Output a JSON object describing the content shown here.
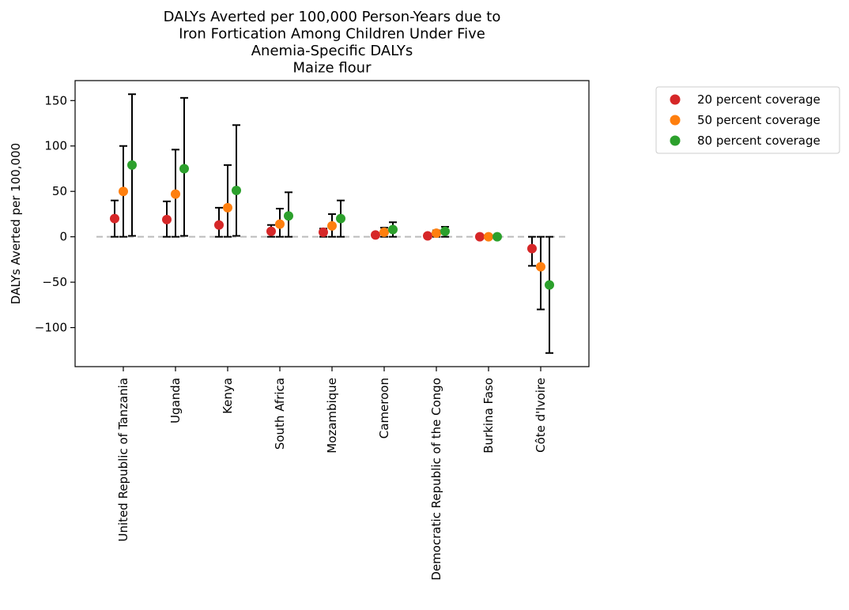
{
  "chart_data": {
    "type": "scatter",
    "title_lines": [
      "DALYs Averted per 100,000 Person-Years due to",
      "Iron Fortication Among Children Under Five",
      "Anemia-Specific DALYs",
      "Maize flour"
    ],
    "xlabel": "",
    "ylabel": "DALYs Averted per 100,000",
    "ylim": [
      -143,
      172
    ],
    "yticks": [
      150,
      100,
      50,
      0,
      -50,
      -100
    ],
    "ytick_labels": [
      "150",
      "100",
      "50",
      "0",
      "−50",
      "−100"
    ],
    "grid": false,
    "legend_position": "outside-top-right",
    "reference_line": 0,
    "categories": [
      "United Republic of Tanzania",
      "Uganda",
      "Kenya",
      "South Africa",
      "Mozambique",
      "Cameroon",
      "Democratic Republic of the Congo",
      "Burkina Faso",
      "Côte d'Ivoire"
    ],
    "series": [
      {
        "name": "20 percent coverage",
        "color": "#d62728",
        "values": [
          20,
          19,
          13,
          6,
          5,
          2,
          1,
          0,
          -13
        ],
        "lower": [
          0,
          0,
          0,
          0,
          0,
          0,
          0,
          0,
          -32
        ],
        "upper": [
          40,
          39,
          32,
          13,
          9,
          4,
          3,
          0,
          0
        ]
      },
      {
        "name": "50 percent coverage",
        "color": "#ff7f0e",
        "values": [
          50,
          47,
          32,
          14,
          12,
          5,
          4,
          0,
          -33
        ],
        "lower": [
          0,
          0,
          0,
          0,
          0,
          0,
          0,
          0,
          -80
        ],
        "upper": [
          100,
          96,
          79,
          31,
          25,
          10,
          7,
          0,
          0
        ]
      },
      {
        "name": "80 percent coverage",
        "color": "#2ca02c",
        "values": [
          79,
          75,
          51,
          23,
          20,
          8,
          6,
          0,
          -53
        ],
        "lower": [
          1,
          1,
          1,
          0,
          0,
          0,
          0,
          0,
          -128
        ],
        "upper": [
          157,
          153,
          123,
          49,
          40,
          16,
          11,
          0,
          0
        ]
      }
    ]
  }
}
